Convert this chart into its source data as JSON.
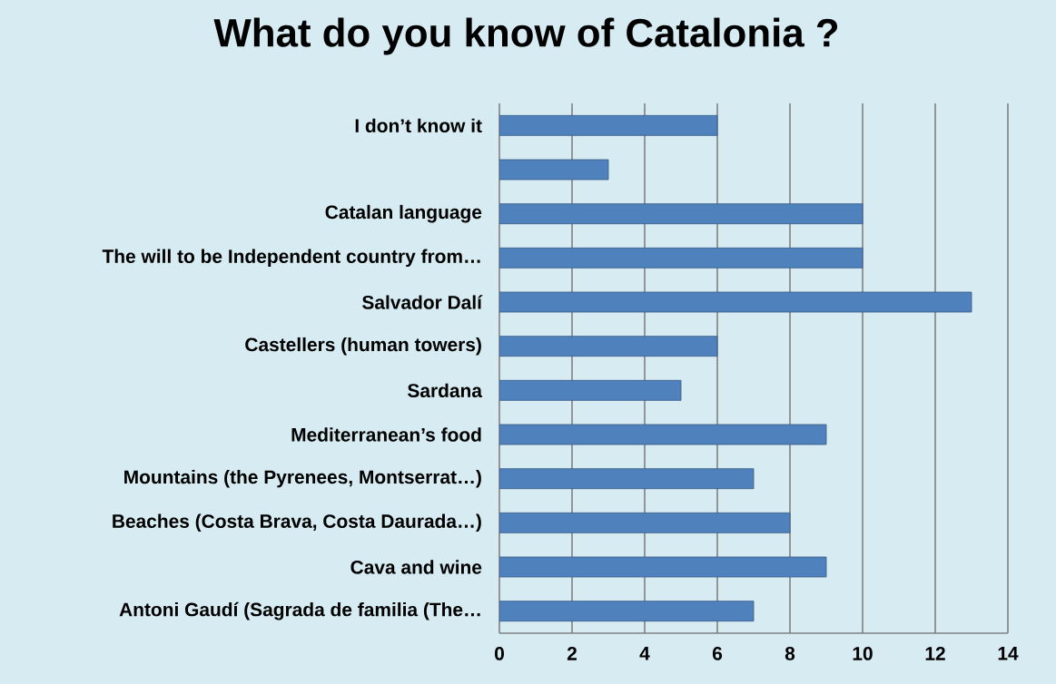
{
  "chart_data": {
    "type": "bar",
    "orientation": "horizontal",
    "title": "What do you know of Catalonia ?",
    "categories": [
      "I don’t know it",
      null,
      "Catalan language",
      "The will to be Independent country from…",
      "Salvador Dalí",
      "Castellers (human towers)",
      "Sardana",
      "Mediterranean’s food",
      "Mountains (the Pyrenees, Montserrat…)",
      "Beaches (Costa Brava, Costa Daurada…)",
      "Cava and wine",
      "Antoni Gaudí (Sagrada de familia (The…"
    ],
    "values": [
      6,
      3,
      10,
      10,
      13,
      6,
      5,
      9,
      7,
      8,
      9,
      7
    ],
    "color": "#4f81bd",
    "xlim": [
      0,
      14
    ],
    "xticks": [
      0,
      2,
      4,
      6,
      8,
      10,
      12,
      14
    ],
    "grid": "x"
  }
}
